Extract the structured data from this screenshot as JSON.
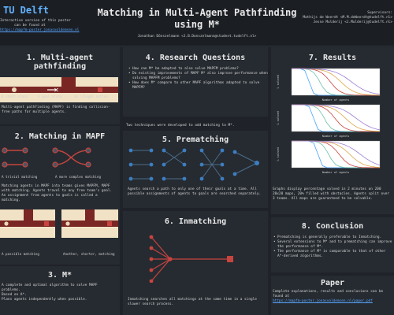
{
  "header": {
    "logo": "TU Delft",
    "hint_line1": "Interactive version of this poster",
    "hint_line2": "can be found at",
    "hint_link": "https://mapfm-poster.jonasvoldemsen.nl",
    "title_line1": "Matching in Multi-Agent Pathfinding",
    "title_line2": "using M*",
    "authors": "Jonathan Dönszelmann <J.B.Donszelmann@student.tudelft.nl>",
    "sup_label": "Supervisors:",
    "sup_1": "Mathijs de Weerdt <M.M.deWeerdt@tudelft.nl>",
    "sup_2": "Jesse Mulderij <J.Mulderij@tudelft.nl>"
  },
  "s1": {
    "title": "1. Multi-agent pathfinding",
    "leg_start": "A start state",
    "leg_goal": "A goal state",
    "leg_illegal": "An illegal action",
    "text": "Multi-agent pathfinding (MAPF) is finding collision-free paths for multiple agents."
  },
  "s2": {
    "title": "2. Matching in MAPF",
    "leg_trivial": "A trivial matching",
    "leg_complex": "A more complex matching",
    "text": "Matching agents in MAPF into teams gives MAPFM, MAPF with matching. Agents travel to any free team's goal. An assignment from agents to goals is called a matching.",
    "leg_possible": "A possible matching",
    "leg_another": "Another, shorter, matching"
  },
  "s3": {
    "title": "3. M*",
    "text1": "A complete and optimal algorithm to solve MAPF problems.",
    "text2": "Based on A*.",
    "text3": "Plans agents independently when possible."
  },
  "s4": {
    "title": "4. Research Questions",
    "items": [
      "How can M* be adapted to also solve MAPFM problems?",
      "Do existing improvements of MAPF M* also improve performance when solving MAPFM problems?",
      "How does M* compare to other MAPF algorithms adapted to solve MAPFM?"
    ]
  },
  "mid_note": "Two techniques were developed to add matching to M*.",
  "s5": {
    "title": "5. Prematching",
    "text": "Agents search a path to only one of their goals at a time. All possible assignments of agents to goals are searched separately."
  },
  "s6": {
    "title": "6. Inmatching",
    "text": "Inmatching searches all matchings at the same time in a single slower search process."
  },
  "s7": {
    "title": "7. Results",
    "text": "Graphs display percentage solved in 2 minutes on 200 20x20 maps, 20% filled with obstacles. Agents split over 3 teams. All maps are guaranteed to be solvable.",
    "x_label": "Number of agents",
    "y_label": "% solved"
  },
  "s8": {
    "title": "8. Conclusion",
    "items": [
      "Prematching is generally preferable to Inmatching.",
      "Several extensions to M* and to prematching can improve the performance of M*.",
      "The performance of M* is comparable to that of other A*-derived algorithms."
    ]
  },
  "s9": {
    "title": "Paper",
    "text": "Complete explanations, results and conclusions can be found at",
    "link": "https://mapfm-poster.jonasvoldemsen.nl/paper.pdf"
  },
  "colors": {
    "bg": "#1f2329",
    "panel": "#262b31",
    "accent_blue": "#63b3ff",
    "agent_red": "#c8443f",
    "grid_cream": "#f1e2c6"
  }
}
